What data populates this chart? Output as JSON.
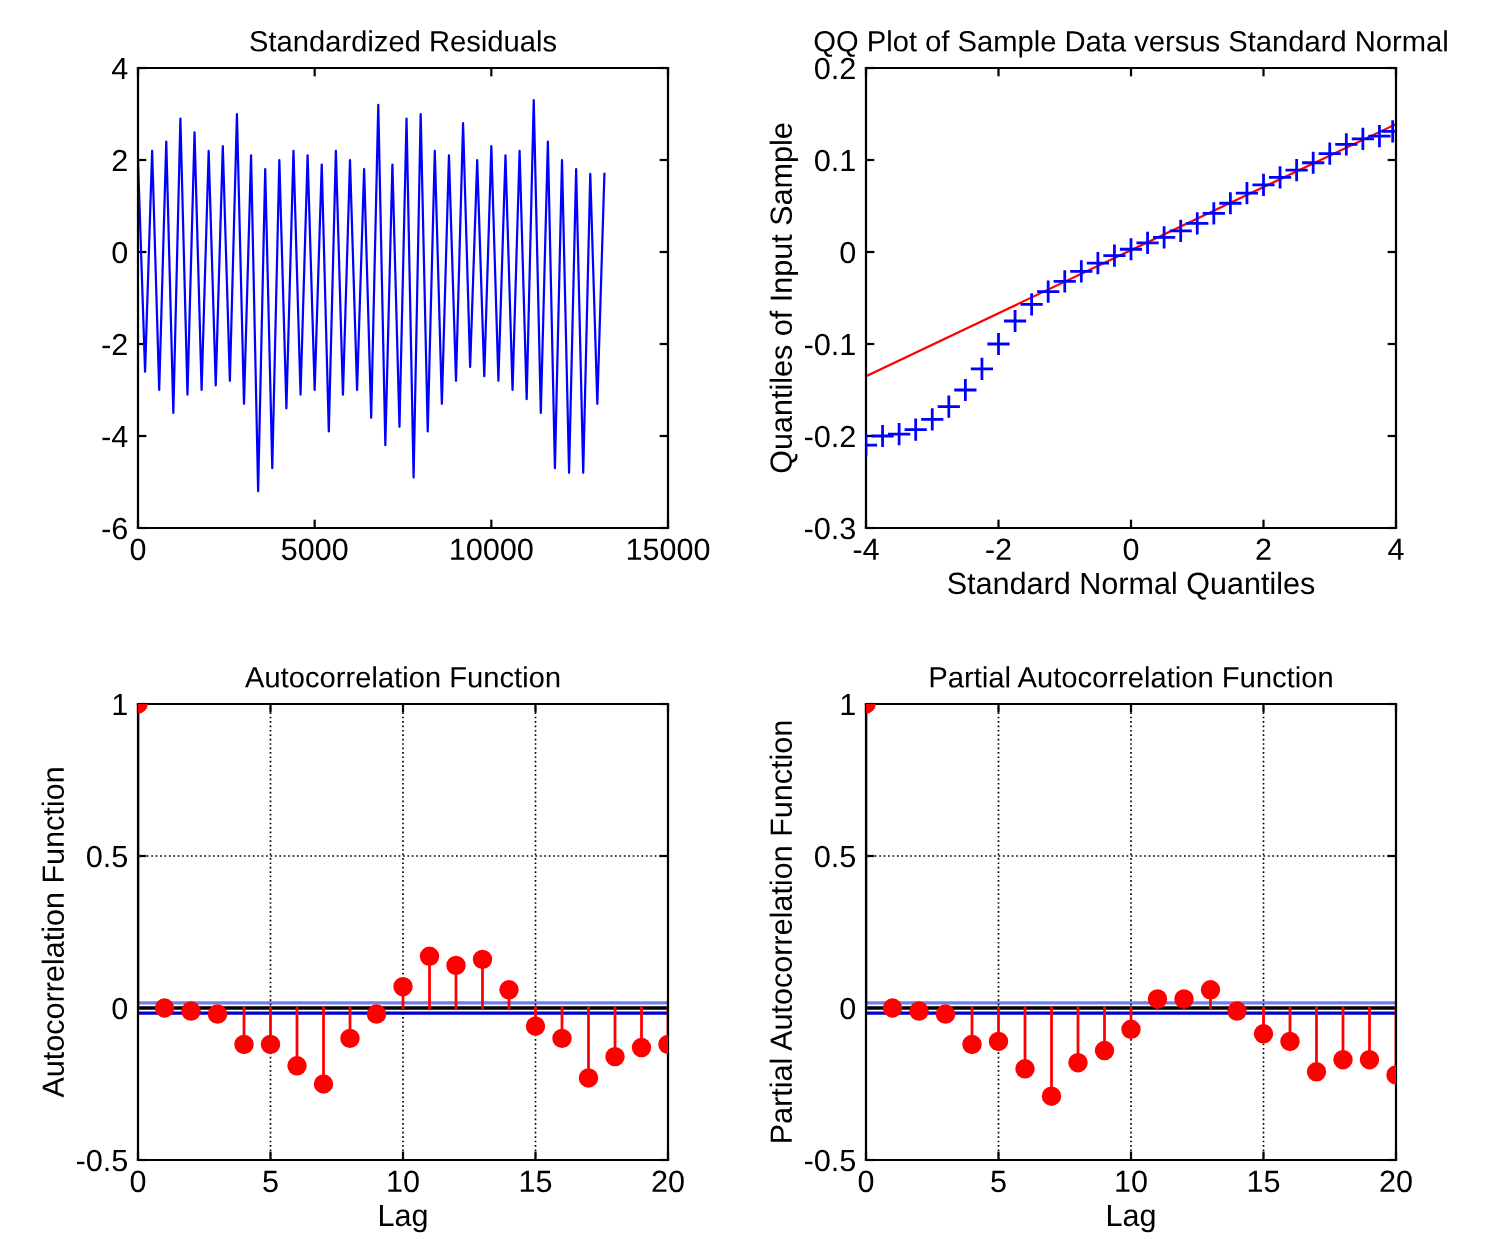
{
  "chart_data": [
    {
      "type": "line",
      "title": "Standardized Residuals",
      "xlim": [
        0,
        15000
      ],
      "ylim": [
        -6,
        4
      ],
      "xticks": [
        0,
        5000,
        10000,
        15000
      ],
      "yticks": [
        -6,
        -4,
        -2,
        0,
        2,
        4
      ],
      "grid": false,
      "series": [
        {
          "color": "#0000ff",
          "x": [
            0,
            200,
            400,
            600,
            800,
            1000,
            1200,
            1400,
            1600,
            1800,
            2000,
            2200,
            2400,
            2600,
            2800,
            3000,
            3200,
            3400,
            3600,
            3800,
            4000,
            4200,
            4400,
            4600,
            4800,
            5000,
            5200,
            5400,
            5600,
            5800,
            6000,
            6200,
            6400,
            6600,
            6800,
            7000,
            7200,
            7400,
            7600,
            7800,
            8000,
            8200,
            8400,
            8600,
            8800,
            9000,
            9200,
            9400,
            9600,
            9800,
            10000,
            10200,
            10400,
            10600,
            10800,
            11000,
            11200,
            11400,
            11600,
            11800,
            12000,
            12200,
            12400,
            12600,
            12800,
            13000,
            13200
          ],
          "values": [
            2.0,
            -2.6,
            2.2,
            -3.0,
            2.4,
            -3.5,
            2.9,
            -3.1,
            2.6,
            -3.0,
            2.2,
            -2.9,
            2.3,
            -2.8,
            3.0,
            -3.3,
            2.1,
            -5.2,
            1.8,
            -4.7,
            2.0,
            -3.4,
            2.2,
            -3.1,
            2.1,
            -3.0,
            1.9,
            -3.9,
            2.2,
            -3.1,
            2.0,
            -3.0,
            1.8,
            -3.6,
            3.2,
            -4.2,
            1.9,
            -3.8,
            2.9,
            -4.9,
            3.0,
            -3.9,
            2.2,
            -3.3,
            2.1,
            -2.8,
            2.8,
            -2.5,
            2.0,
            -2.7,
            2.3,
            -2.8,
            2.1,
            -3.0,
            2.2,
            -3.2,
            3.3,
            -3.5,
            2.4,
            -4.7,
            2.0,
            -4.8,
            1.8,
            -4.8,
            1.7,
            -3.3,
            1.7
          ]
        }
      ]
    },
    {
      "type": "scatter",
      "title": "QQ Plot of Sample Data versus Standard Normal",
      "xlabel": "Standard Normal Quantiles",
      "ylabel": "Quantiles of Input Sample",
      "xlim": [
        -4,
        4
      ],
      "ylim": [
        -0.3,
        0.2
      ],
      "xticks": [
        -4,
        -2,
        0,
        2,
        4
      ],
      "yticks": [
        -0.3,
        -0.2,
        -0.1,
        0,
        0.1,
        0.2
      ],
      "grid": false,
      "series": [
        {
          "color": "#0000ff",
          "marker": "cross",
          "x": [
            -4,
            -3.75,
            -3.5,
            -3.25,
            -3.0,
            -2.75,
            -2.5,
            -2.25,
            -2.0,
            -1.75,
            -1.5,
            -1.25,
            -1.0,
            -0.75,
            -0.5,
            -0.25,
            0,
            0.25,
            0.5,
            0.75,
            1.0,
            1.25,
            1.5,
            1.75,
            2.0,
            2.25,
            2.5,
            2.75,
            3.0,
            3.25,
            3.5,
            3.75,
            3.95
          ],
          "values": [
            -0.21,
            -0.2,
            -0.198,
            -0.193,
            -0.182,
            -0.168,
            -0.15,
            -0.127,
            -0.1,
            -0.075,
            -0.057,
            -0.043,
            -0.032,
            -0.021,
            -0.012,
            -0.004,
            0.003,
            0.01,
            0.016,
            0.023,
            0.031,
            0.042,
            0.053,
            0.064,
            0.073,
            0.081,
            0.089,
            0.097,
            0.107,
            0.117,
            0.123,
            0.126,
            0.131
          ]
        },
        {
          "type": "line",
          "marker": "none",
          "color": "#ff0000",
          "x": [
            -4,
            4
          ],
          "values": [
            -0.135,
            0.139
          ]
        }
      ]
    },
    {
      "type": "lollipop",
      "title": "Autocorrelation Function",
      "xlabel": "Lag",
      "ylabel": "Autocorrelation Function",
      "xlim": [
        0,
        20
      ],
      "ylim": [
        -0.5,
        1
      ],
      "xticks": [
        0,
        5,
        10,
        15,
        20
      ],
      "yticks": [
        -0.5,
        0,
        0.5,
        1
      ],
      "grid": true,
      "marker": "circle",
      "ref_lines": [
        {
          "axis": "y",
          "value": 0,
          "color": "#000000"
        },
        {
          "axis": "y",
          "value": 0.017,
          "color": "#6f7fef"
        },
        {
          "axis": "y",
          "value": -0.017,
          "color": "#0000cc"
        }
      ],
      "series": [
        {
          "color": "#ff0000",
          "x": [
            0,
            1,
            2,
            3,
            4,
            5,
            6,
            7,
            8,
            9,
            10,
            11,
            12,
            13,
            14,
            15,
            16,
            17,
            18,
            19,
            20
          ],
          "values": [
            1,
            0,
            -0.01,
            -0.02,
            -0.12,
            -0.12,
            -0.19,
            -0.25,
            -0.1,
            -0.02,
            0.07,
            0.17,
            0.14,
            0.16,
            0.06,
            -0.06,
            -0.1,
            -0.23,
            -0.16,
            -0.13,
            -0.12
          ]
        }
      ]
    },
    {
      "type": "lollipop",
      "title": "Partial Autocorrelation Function",
      "xlabel": "Lag",
      "ylabel": "Partial Autocorrelation Function",
      "xlim": [
        0,
        20
      ],
      "ylim": [
        -0.5,
        1
      ],
      "xticks": [
        0,
        5,
        10,
        15,
        20
      ],
      "yticks": [
        -0.5,
        0,
        0.5,
        1
      ],
      "grid": true,
      "marker": "circle",
      "ref_lines": [
        {
          "axis": "y",
          "value": 0,
          "color": "#000000"
        },
        {
          "axis": "y",
          "value": 0.017,
          "color": "#6f7fef"
        },
        {
          "axis": "y",
          "value": -0.017,
          "color": "#0000cc"
        }
      ],
      "series": [
        {
          "color": "#ff0000",
          "x": [
            0,
            1,
            2,
            3,
            4,
            5,
            6,
            7,
            8,
            9,
            10,
            11,
            12,
            13,
            14,
            15,
            16,
            17,
            18,
            19,
            20
          ],
          "values": [
            1,
            0,
            -0.01,
            -0.02,
            -0.12,
            -0.11,
            -0.2,
            -0.29,
            -0.18,
            -0.14,
            -0.07,
            0.03,
            0.03,
            0.06,
            -0.01,
            -0.085,
            -0.11,
            -0.21,
            -0.17,
            -0.17,
            -0.22
          ]
        }
      ]
    }
  ]
}
